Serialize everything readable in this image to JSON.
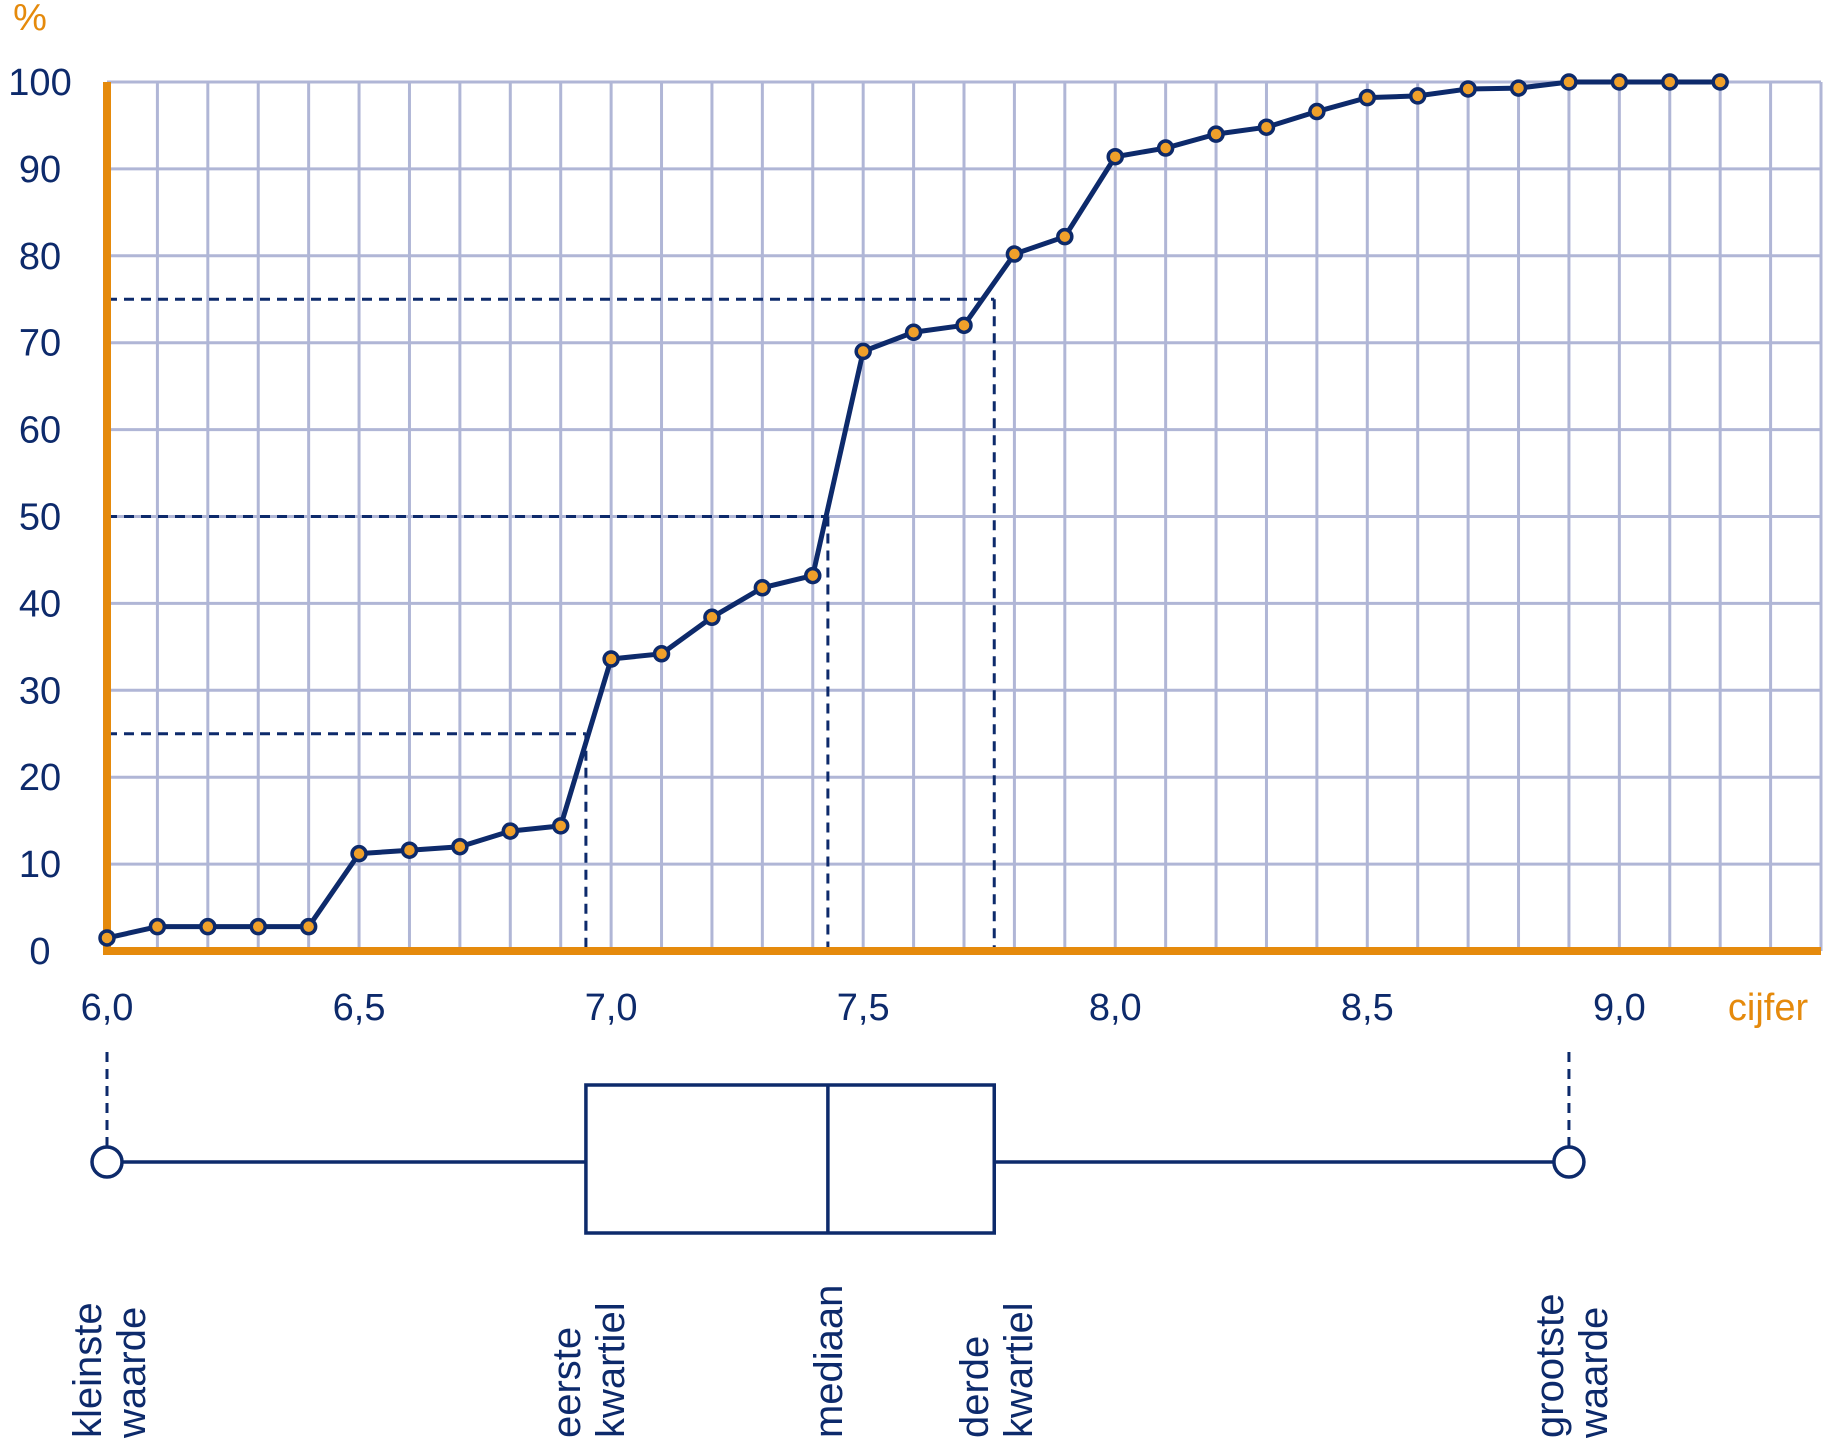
{
  "chart_data": {
    "type": "line",
    "title": "",
    "xlabel": "cijfer",
    "ylabel": "%",
    "xlim": [
      6.0,
      9.4
    ],
    "ylim": [
      0,
      100
    ],
    "x_ticks": [
      6.0,
      6.5,
      7.0,
      7.5,
      8.0,
      8.5,
      9.0
    ],
    "x_tick_labels": [
      "6,0",
      "6,5",
      "7,0",
      "7,5",
      "8,0",
      "8,5",
      "9,0"
    ],
    "y_ticks": [
      0,
      10,
      20,
      30,
      40,
      50,
      60,
      70,
      80,
      90,
      100
    ],
    "y_tick_labels": [
      "0",
      "10",
      "20",
      "30",
      "40",
      "50",
      "60",
      "70",
      "80",
      "90",
      "100"
    ],
    "grid": true,
    "x_minor_step": 0.1,
    "series": [
      {
        "x": [
          6.0,
          6.1,
          6.2,
          6.3,
          6.4,
          6.5,
          6.6,
          6.7,
          6.8,
          6.9,
          7.0,
          7.1,
          7.2,
          7.3,
          7.4,
          7.5,
          7.6,
          7.7,
          7.8,
          7.9,
          8.0,
          8.1,
          8.2,
          8.3,
          8.4,
          8.5,
          8.6,
          8.7,
          8.8,
          8.9,
          9.0,
          9.1,
          9.2
        ],
        "y": [
          1.5,
          2.8,
          2.8,
          2.8,
          2.8,
          11.2,
          11.6,
          12.0,
          13.8,
          14.4,
          33.6,
          34.2,
          38.4,
          41.8,
          43.2,
          69.0,
          71.2,
          72.0,
          80.2,
          82.2,
          91.4,
          92.4,
          94.0,
          94.8,
          96.6,
          98.2,
          98.4,
          99.2,
          99.3,
          100,
          100,
          100,
          100
        ]
      }
    ],
    "quartile_guides": [
      {
        "percent": 25,
        "value": 6.95
      },
      {
        "percent": 50,
        "value": 7.43
      },
      {
        "percent": 75,
        "value": 7.76
      }
    ],
    "boxplot": {
      "min": 6.0,
      "q1": 6.95,
      "median": 7.43,
      "q3": 7.76,
      "max": 8.9
    },
    "boxplot_labels": {
      "min": [
        "kleinste",
        "waarde"
      ],
      "q1": [
        "eerste",
        "kwartiel"
      ],
      "median": [
        "mediaan"
      ],
      "q3": [
        "derde",
        "kwartiel"
      ],
      "max": [
        "grootste",
        "waarde"
      ]
    }
  }
}
